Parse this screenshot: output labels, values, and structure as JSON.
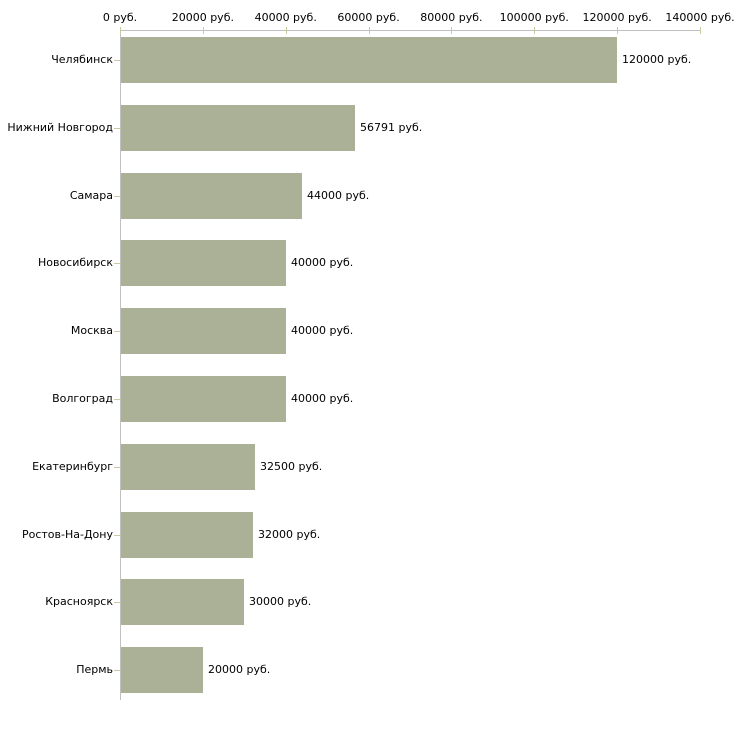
{
  "chart_data": {
    "type": "bar",
    "orientation": "horizontal",
    "title": "",
    "xlabel": "",
    "ylabel": "",
    "categories": [
      "Челябинск",
      "Нижний Новгород",
      "Самара",
      "Новосибирск",
      "Москва",
      "Волгоград",
      "Екатеринбург",
      "Ростов-На-Дону",
      "Красноярск",
      "Пермь"
    ],
    "values": [
      120000,
      56791,
      44000,
      40000,
      40000,
      40000,
      32500,
      32000,
      30000,
      20000
    ],
    "value_labels": [
      "120000 руб.",
      "56791 руб.",
      "44000 руб.",
      "40000 руб.",
      "40000 руб.",
      "40000 руб.",
      "32500 руб.",
      "32000 руб.",
      "30000 руб.",
      "20000 руб."
    ],
    "xlim": [
      0,
      140000
    ],
    "x_ticks": [
      0,
      20000,
      40000,
      60000,
      80000,
      100000,
      120000,
      140000
    ],
    "x_tick_labels": [
      "0 руб.",
      "20000 руб.",
      "40000 руб.",
      "60000 руб.",
      "80000 руб.",
      "100000 руб.",
      "120000 руб.",
      "140000 руб."
    ],
    "grid": false,
    "legend": null,
    "colors": {
      "bar": "#abb197",
      "axis": "#c0c0c0",
      "tick": "#c9cb9e",
      "text": "#000000",
      "background": "#ffffff"
    }
  }
}
